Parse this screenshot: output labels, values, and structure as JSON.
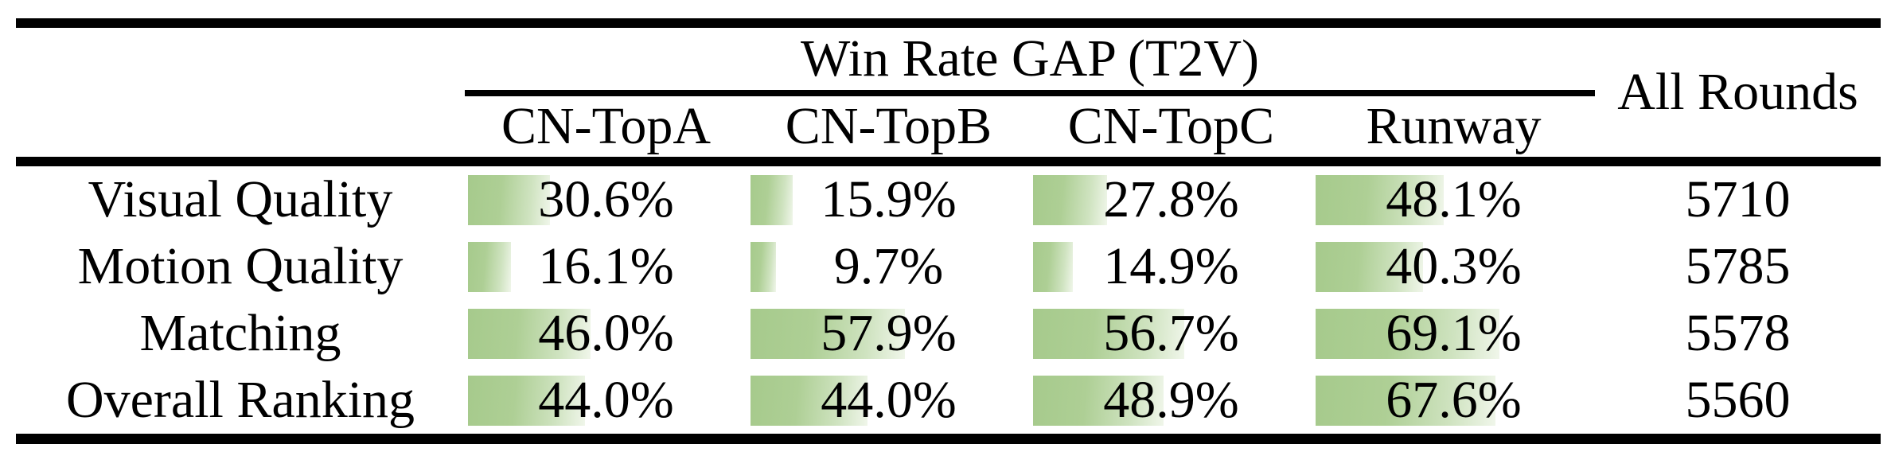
{
  "table": {
    "group_header": "Win Rate GAP (T2V)",
    "col_headers": [
      "CN-TopA",
      "CN-TopB",
      "CN-TopC",
      "Runway"
    ],
    "all_rounds_header": "All Rounds",
    "rows": [
      {
        "label": "Visual Quality",
        "values": [
          "30.6%",
          "15.9%",
          "27.8%",
          "48.1%"
        ],
        "all_rounds": "5710"
      },
      {
        "label": "Motion Quality",
        "values": [
          "16.1%",
          "9.7%",
          "14.9%",
          "40.3%"
        ],
        "all_rounds": "5785"
      },
      {
        "label": "Matching",
        "values": [
          "46.0%",
          "57.9%",
          "56.7%",
          "69.1%"
        ],
        "all_rounds": "5578"
      },
      {
        "label": "Overall Ranking",
        "values": [
          "44.0%",
          "44.0%",
          "48.9%",
          "67.6%"
        ],
        "all_rounds": "5560"
      }
    ],
    "colors": {
      "bar_green": "#a6ca8c",
      "bar_fade": "#f0f6ea",
      "rule_black": "#000000"
    }
  },
  "chart_data": {
    "type": "table",
    "title": "Win Rate GAP (T2V)",
    "columns": [
      "CN-TopA",
      "CN-TopB",
      "CN-TopC",
      "Runway",
      "All Rounds"
    ],
    "row_labels": [
      "Visual Quality",
      "Motion Quality",
      "Matching",
      "Overall Ranking"
    ],
    "win_rate_gap_percent": [
      [
        30.6,
        15.9,
        27.8,
        48.1
      ],
      [
        16.1,
        9.7,
        14.9,
        40.3
      ],
      [
        46.0,
        57.9,
        56.7,
        69.1
      ],
      [
        44.0,
        44.0,
        48.9,
        67.6
      ]
    ],
    "all_rounds": [
      5710,
      5785,
      5578,
      5560
    ],
    "layout_hints": "green in-cell data bars, width proportional to percent (100% = full column width), gradient fading left-to-right"
  }
}
